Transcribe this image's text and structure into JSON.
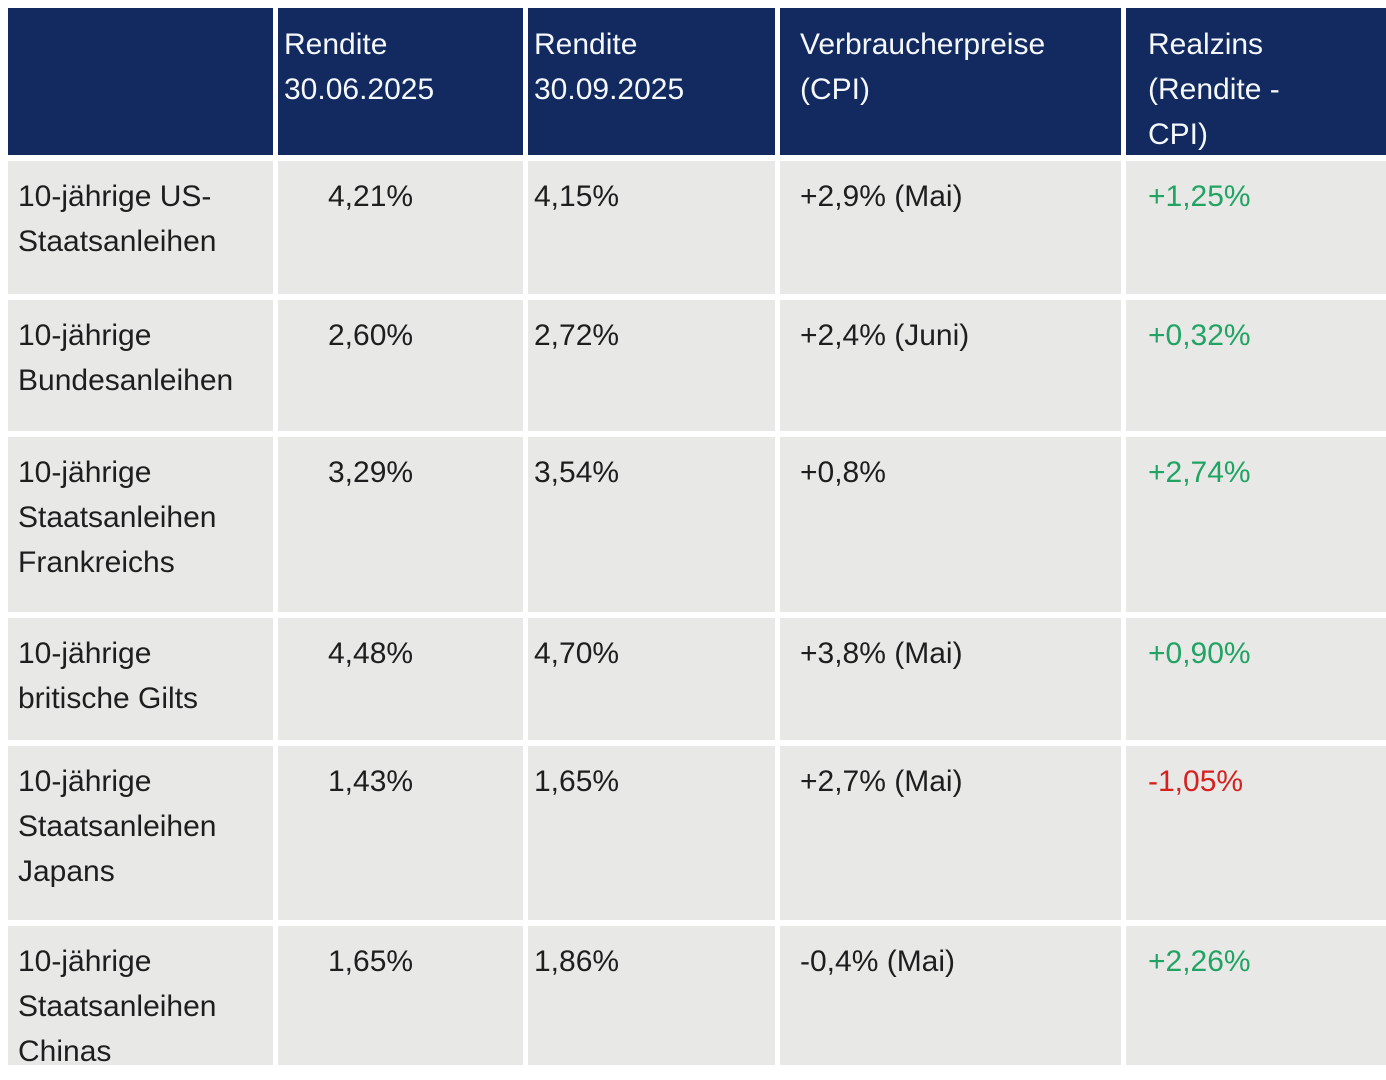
{
  "colors": {
    "header_bg": "#122a60",
    "header_text": "#f5f8fc",
    "cell_bg": "#e8e8e7",
    "body_text": "#1e1e1e",
    "positive_green": "#21a463",
    "negative_red": "#d6211f",
    "separator_white": "#ffffff"
  },
  "table": {
    "header": {
      "col_label": "",
      "col_rendite_1": "Rendite\n30.06.2025",
      "col_rendite_2": "Rendite\n30.09.2025",
      "col_cpi": "Verbraucherpreise\n(CPI)",
      "col_realzins": "Realzins\n(Rendite -\nCPI)"
    },
    "rows": [
      {
        "label": "10-jährige US-\nStaatsanleihen",
        "rendite_1": "4,21%",
        "rendite_2": "4,15%",
        "cpi": "+2,9% (Mai)",
        "realzins": "+1,25%",
        "realzins_trend": "positive"
      },
      {
        "label": "10-jährige\nBundesanleihen",
        "rendite_1": "2,60%",
        "rendite_2": "2,72%",
        "cpi": "+2,4% (Juni)",
        "realzins": "+0,32%",
        "realzins_trend": "positive"
      },
      {
        "label": "10-jährige\nStaatsanleihen\nFrankreichs",
        "rendite_1": "3,29%",
        "rendite_2": "3,54%",
        "cpi": "+0,8%",
        "realzins": "+2,74%",
        "realzins_trend": "positive"
      },
      {
        "label": "10-jährige\nbritische Gilts",
        "rendite_1": "4,48%",
        "rendite_2": "4,70%",
        "cpi": "+3,8% (Mai)",
        "realzins": "+0,90%",
        "realzins_trend": "positive"
      },
      {
        "label": "10-jährige\nStaatsanleihen\nJapans",
        "rendite_1": "1,43%",
        "rendite_2": "1,65%",
        "cpi": "+2,7% (Mai)",
        "realzins": "-1,05%",
        "realzins_trend": "negative"
      },
      {
        "label": "10-jährige\nStaatsanleihen\nChinas",
        "rendite_1": "1,65%",
        "rendite_2": "1,86%",
        "cpi": "-0,4% (Mai)",
        "realzins": "+2,26%",
        "realzins_trend": "positive"
      }
    ]
  },
  "chart_data": {
    "type": "table",
    "columns": [
      "",
      "Rendite 30.06.2025",
      "Rendite 30.09.2025",
      "Verbraucherpreise (CPI)",
      "Realzins (Rendite - CPI)"
    ],
    "rows": [
      [
        "10-jährige US-Staatsanleihen",
        "4,21%",
        "4,15%",
        "+2,9% (Mai)",
        "+1,25%"
      ],
      [
        "10-jährige Bundesanleihen",
        "2,60%",
        "2,72%",
        "+2,4% (Juni)",
        "+0,32%"
      ],
      [
        "10-jährige Staatsanleihen Frankreichs",
        "3,29%",
        "3,54%",
        "+0,8%",
        "+2,74%"
      ],
      [
        "10-jährige britische Gilts",
        "4,48%",
        "4,70%",
        "+3,8% (Mai)",
        "+0,90%"
      ],
      [
        "10-jährige Staatsanleihen Japans",
        "1,43%",
        "1,65%",
        "+2,7% (Mai)",
        "-1,05%"
      ],
      [
        "10-jährige Staatsanleihen Chinas",
        "1,65%",
        "1,86%",
        "-0,4% (Mai)",
        "+2,26%"
      ]
    ]
  }
}
